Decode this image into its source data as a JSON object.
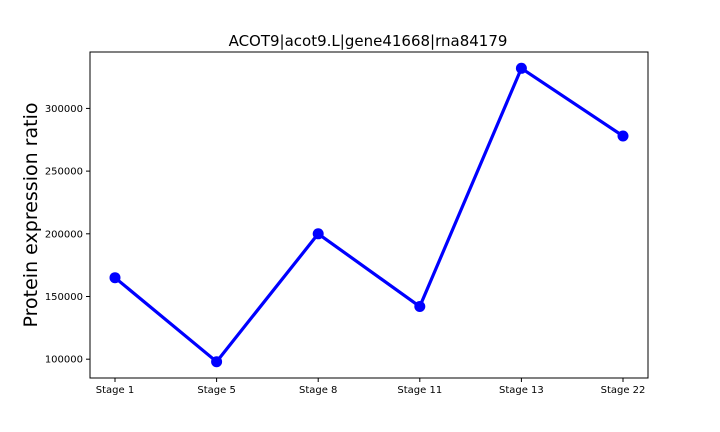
{
  "chart_data": {
    "type": "line",
    "title": "ACOT9|acot9.L|gene41668|rna84179",
    "xlabel": "",
    "ylabel": "Protein expression ratio",
    "categories": [
      "Stage 1",
      "Stage 5",
      "Stage 8",
      "Stage 11",
      "Stage 13",
      "Stage 22"
    ],
    "series": [
      {
        "values": [
          165000,
          98000,
          200000,
          142000,
          332000,
          278000
        ],
        "color": "#0000ff",
        "marker": "circle"
      }
    ],
    "yticks": [
      100000,
      150000,
      200000,
      250000,
      300000
    ],
    "ytick_labels": [
      "100000",
      "150000",
      "200000",
      "250000",
      "300000"
    ],
    "ylim": [
      85000,
      345000
    ],
    "grid": false,
    "legend": "none"
  }
}
